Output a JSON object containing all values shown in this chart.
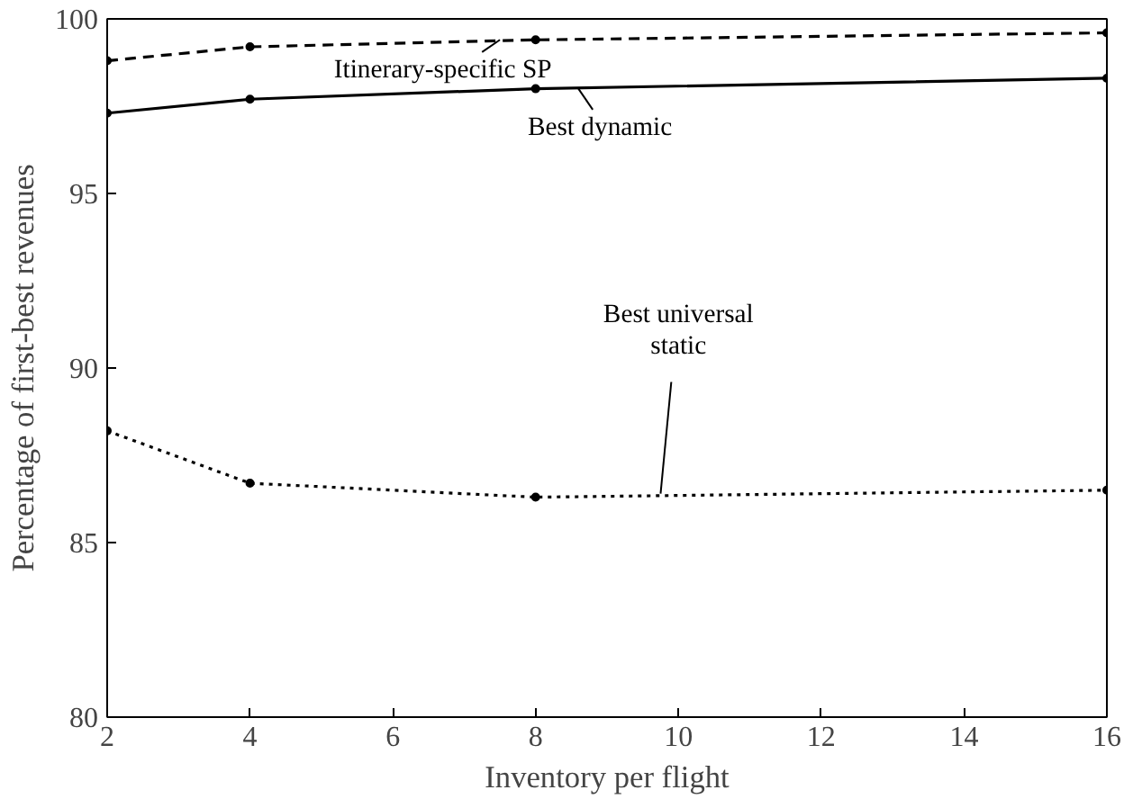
{
  "chart_data": {
    "type": "line",
    "xlabel": "Inventory per flight",
    "ylabel": "Percentage of first-best revenues",
    "x": [
      2,
      4,
      8,
      16
    ],
    "series": [
      {
        "color": "#000000",
        "line_style": "dashed",
        "values": [
          98.8,
          99.2,
          99.4,
          99.6
        ]
      },
      {
        "color": "#000000",
        "line_style": "solid",
        "values": [
          97.3,
          97.7,
          98.0,
          98.3
        ]
      },
      {
        "color": "#000000",
        "line_style": "dotted",
        "values": [
          88.2,
          86.7,
          86.3,
          86.5
        ]
      }
    ],
    "marker": "circle",
    "xlim": [
      2,
      16
    ],
    "ylim": [
      80,
      100
    ],
    "xticks": [
      2,
      4,
      6,
      8,
      10,
      12,
      14,
      16
    ],
    "yticks": [
      80,
      85,
      90,
      95,
      100
    ],
    "grid": false,
    "annotations": [
      {
        "text": "Itinerary-specific SP",
        "x": 7.5,
        "y": 99.4
      },
      {
        "text": "Best dynamic",
        "x": 8.6,
        "y": 98.0
      },
      {
        "text": "Best universal\nstatic",
        "x": 9.75,
        "y": 86.4
      }
    ]
  }
}
